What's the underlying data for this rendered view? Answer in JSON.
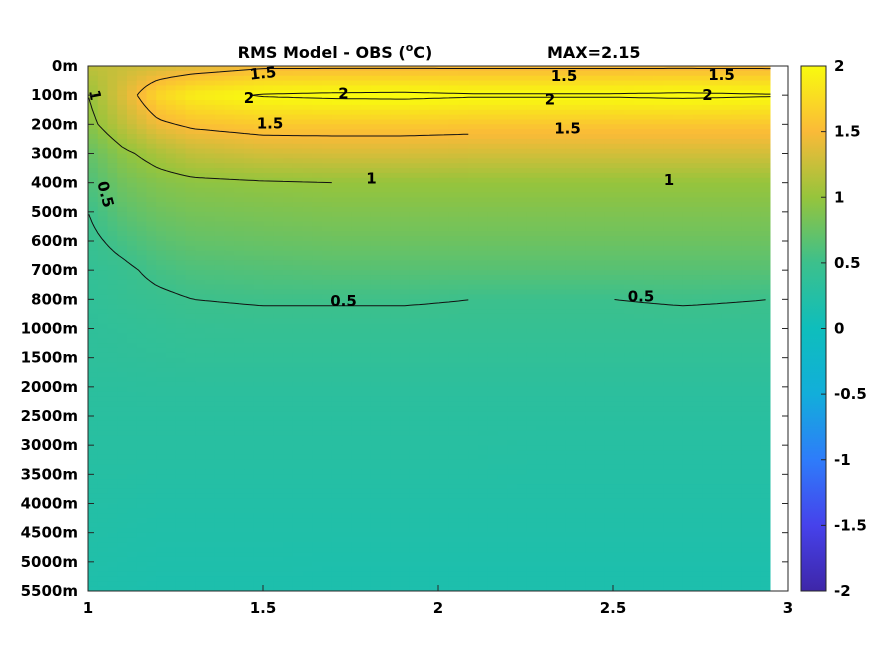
{
  "chart_data": {
    "type": "heatmap",
    "title": "RMS Model - OBS (",
    "title_sup": "o",
    "title_unit": "C)",
    "max_label": "MAX=2.15",
    "x_ticks": [
      "1",
      "1.5",
      "2",
      "2.5",
      "3"
    ],
    "x_tick_values": [
      1,
      1.5,
      2,
      2.5,
      3
    ],
    "xlim": [
      1,
      3
    ],
    "x_data_max": 2.95,
    "y_levels": [
      "0m",
      "100m",
      "200m",
      "300m",
      "400m",
      "500m",
      "600m",
      "700m",
      "800m",
      "1000m",
      "1500m",
      "2000m",
      "2500m",
      "3000m",
      "3500m",
      "4000m",
      "4500m",
      "5000m",
      "5500m"
    ],
    "colorbar": {
      "range": [
        -2,
        2
      ],
      "ticks": [
        "2",
        "1.5",
        "1",
        "0.5",
        "0",
        "-0.5",
        "-1",
        "-1.5",
        "-2"
      ],
      "tick_values": [
        2,
        1.5,
        1,
        0.5,
        0,
        -0.5,
        -1,
        -1.5,
        -2
      ],
      "colormap": "parula"
    },
    "contour_levels": [
      0.5,
      1,
      1.5,
      2
    ],
    "contour_labels": [
      {
        "text": "1.5",
        "x": 1.5,
        "y": 0.25,
        "angle": -6
      },
      {
        "text": "1.5",
        "x": 2.36,
        "y": 0.35,
        "angle": 0
      },
      {
        "text": "1.5",
        "x": 2.81,
        "y": 0.3,
        "angle": 0
      },
      {
        "text": "2",
        "x": 1.46,
        "y": 1.1,
        "angle": 0
      },
      {
        "text": "2",
        "x": 1.73,
        "y": 0.95,
        "angle": 0
      },
      {
        "text": "2",
        "x": 2.32,
        "y": 1.15,
        "angle": 0
      },
      {
        "text": "2",
        "x": 2.77,
        "y": 1.0,
        "angle": 0
      },
      {
        "text": "1",
        "x": 1.02,
        "y": 1.0,
        "angle": 80
      },
      {
        "text": "1.5",
        "x": 1.52,
        "y": 1.97,
        "angle": 0
      },
      {
        "text": "1.5",
        "x": 2.37,
        "y": 2.15,
        "angle": 0
      },
      {
        "text": "1",
        "x": 1.81,
        "y": 3.85,
        "angle": 0
      },
      {
        "text": "1",
        "x": 2.66,
        "y": 3.9,
        "angle": 0
      },
      {
        "text": "0.5",
        "x": 1.05,
        "y": 4.4,
        "angle": 75
      },
      {
        "text": "0.5",
        "x": 1.73,
        "y": 8.05,
        "angle": 0
      },
      {
        "text": "0.5",
        "x": 2.58,
        "y": 7.9,
        "angle": 0
      }
    ],
    "field": {
      "x": [
        1,
        1.1,
        1.2,
        1.3,
        1.5,
        1.7,
        1.9,
        2.1,
        2.3,
        2.5,
        2.7,
        2.95
      ],
      "rows": [
        [
          1.2,
          1.25,
          1.3,
          1.35,
          1.45,
          1.45,
          1.45,
          1.45,
          1.45,
          1.45,
          1.45,
          1.45
        ],
        [
          1.0,
          1.35,
          1.72,
          1.9,
          2.02,
          2.05,
          2.06,
          2.03,
          2.03,
          2.03,
          2.05,
          2.02
        ],
        [
          0.92,
          1.2,
          1.45,
          1.55,
          1.62,
          1.62,
          1.62,
          1.6,
          1.6,
          1.6,
          1.6,
          1.6
        ],
        [
          0.72,
          0.95,
          1.1,
          1.22,
          1.3,
          1.32,
          1.32,
          1.3,
          1.3,
          1.3,
          1.3,
          1.3
        ],
        [
          0.6,
          0.8,
          0.9,
          0.95,
          0.98,
          1.0,
          1.0,
          1.0,
          1.0,
          1.0,
          1.0,
          1.0
        ],
        [
          0.5,
          0.68,
          0.78,
          0.83,
          0.86,
          0.88,
          0.88,
          0.88,
          0.88,
          0.88,
          0.88,
          0.88
        ],
        [
          0.45,
          0.56,
          0.66,
          0.72,
          0.75,
          0.77,
          0.77,
          0.77,
          0.77,
          0.77,
          0.77,
          0.77
        ],
        [
          0.4,
          0.46,
          0.55,
          0.6,
          0.63,
          0.65,
          0.65,
          0.65,
          0.65,
          0.65,
          0.65,
          0.65
        ],
        [
          0.38,
          0.42,
          0.46,
          0.5,
          0.52,
          0.52,
          0.52,
          0.5,
          0.5,
          0.5,
          0.52,
          0.5
        ],
        [
          0.36,
          0.38,
          0.4,
          0.42,
          0.43,
          0.43,
          0.43,
          0.43,
          0.43,
          0.43,
          0.43,
          0.43
        ],
        [
          0.35,
          0.36,
          0.37,
          0.38,
          0.38,
          0.38,
          0.38,
          0.38,
          0.38,
          0.38,
          0.38,
          0.38
        ],
        [
          0.32,
          0.32,
          0.33,
          0.33,
          0.33,
          0.33,
          0.33,
          0.33,
          0.33,
          0.33,
          0.33,
          0.33
        ],
        [
          0.3,
          0.3,
          0.3,
          0.3,
          0.3,
          0.3,
          0.3,
          0.3,
          0.3,
          0.3,
          0.3,
          0.3
        ],
        [
          0.28,
          0.28,
          0.28,
          0.28,
          0.28,
          0.28,
          0.28,
          0.28,
          0.27,
          0.27,
          0.27,
          0.27
        ],
        [
          0.26,
          0.26,
          0.25,
          0.25,
          0.25,
          0.25,
          0.25,
          0.25,
          0.24,
          0.24,
          0.24,
          0.24
        ],
        [
          0.24,
          0.23,
          0.22,
          0.22,
          0.22,
          0.22,
          0.22,
          0.22,
          0.22,
          0.22,
          0.22,
          0.22
        ],
        [
          0.22,
          0.21,
          0.2,
          0.2,
          0.2,
          0.2,
          0.2,
          0.2,
          0.2,
          0.2,
          0.2,
          0.2
        ],
        [
          0.2,
          0.19,
          0.18,
          0.18,
          0.18,
          0.17,
          0.17,
          0.17,
          0.17,
          0.17,
          0.17,
          0.17
        ],
        [
          0.18,
          0.17,
          0.16,
          0.16,
          0.16,
          0.16,
          0.16,
          0.16,
          0.16,
          0.16,
          0.16,
          0.16
        ]
      ]
    }
  }
}
